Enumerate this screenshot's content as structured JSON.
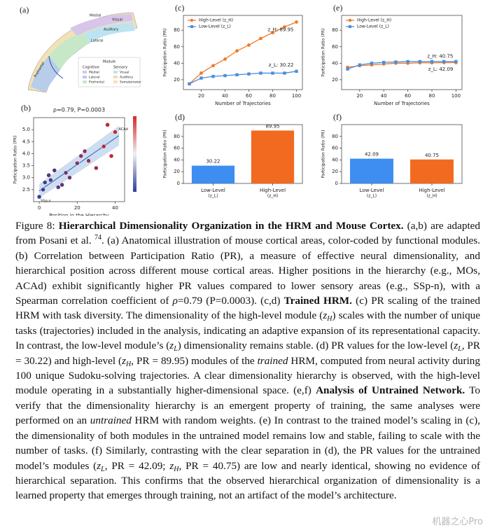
{
  "panel_a": {
    "label": "(a)",
    "regions": [
      "Medial",
      "Visual",
      "Auditory",
      "Lateral",
      "Prefrontal"
    ],
    "legend": {
      "title": "Module",
      "columns": [
        {
          "heading": "Cognitive",
          "items": [
            "Medial",
            "Lateral",
            "Prefrontal"
          ]
        },
        {
          "heading": "Sensory",
          "items": [
            "Visual",
            "Auditory",
            "Somatomotor"
          ]
        }
      ]
    }
  },
  "chart_data": [
    {
      "type": "scatter",
      "label": "(b)",
      "title": "ρ=0.79, P=0.0003",
      "xlabel": "Position in the Hierarchy",
      "ylabel": "Participation Ratio (PR)",
      "x": [
        0,
        2,
        3,
        5,
        6,
        8,
        10,
        12,
        14,
        16,
        20,
        22,
        24,
        26,
        30,
        34,
        36,
        38,
        40
      ],
      "values": [
        2.2,
        2.5,
        2.8,
        3.1,
        2.9,
        3.3,
        2.6,
        2.7,
        3.2,
        3.0,
        3.6,
        3.9,
        4.1,
        3.7,
        3.4,
        4.3,
        5.2,
        3.9,
        4.9
      ],
      "labels": [
        "SSp-n",
        null,
        null,
        null,
        null,
        null,
        null,
        null,
        null,
        null,
        null,
        null,
        null,
        null,
        null,
        null,
        null,
        null,
        "ACAd"
      ],
      "colormap": [
        "#2c3e9c",
        "#d62728"
      ],
      "fit": {
        "x": [
          0,
          42
        ],
        "y": [
          2.45,
          4.75
        ],
        "color": "#3a78c2"
      },
      "xlim": [
        -3,
        45
      ],
      "ylim": [
        2.0,
        5.5
      ],
      "xticks": [
        0,
        20,
        40
      ],
      "yticks": [
        2.5,
        {
          "value": 3,
          "label": "3.0"
        },
        3.5,
        {
          "value": 4,
          "label": "4.0"
        },
        4.5,
        {
          "value": 5,
          "label": "5.0"
        }
      ]
    },
    {
      "type": "line",
      "label": "(c)",
      "xlabel": "Number of Trajectories",
      "ylabel": "Participation Ratio (PR)",
      "x": [
        10,
        20,
        30,
        40,
        50,
        60,
        70,
        80,
        90,
        100
      ],
      "legend": "upper left",
      "series": [
        {
          "name": "High-Level (z_H)",
          "color": "#f07a2a",
          "marker": "circle",
          "annotation": "z_H: 89.95",
          "values": [
            15,
            28,
            37,
            45,
            55,
            62,
            70,
            77,
            84,
            89.95
          ]
        },
        {
          "name": "Low-Level (z_L)",
          "color": "#4a8fd8",
          "marker": "square",
          "annotation": "z_L: 30.22",
          "values": [
            15,
            22,
            24,
            25,
            26,
            27,
            28,
            28,
            28,
            30.22
          ]
        }
      ],
      "xlim": [
        5,
        105
      ],
      "ylim": [
        8,
        98
      ],
      "xticks": [
        20,
        40,
        60,
        80,
        100
      ],
      "yticks": [
        20,
        40,
        60,
        80
      ]
    },
    {
      "type": "bar",
      "label": "(d)",
      "ylabel": "Participation Ratio (PR)",
      "categories": [
        [
          "Low-Level",
          "(z_L)"
        ],
        [
          "High-Level",
          "(z_H)"
        ]
      ],
      "values": [
        30.22,
        89.95
      ],
      "colors": [
        "#3d8ef0",
        "#f26a1f"
      ],
      "ylim": [
        0,
        100
      ],
      "yticks": [
        0,
        20,
        40,
        60,
        80
      ]
    },
    {
      "type": "line",
      "label": "(e)",
      "xlabel": "Number of Trajectories",
      "ylabel": "Participation Ratio (PR)",
      "x": [
        10,
        20,
        30,
        40,
        50,
        60,
        70,
        80,
        90,
        100
      ],
      "legend": "upper left",
      "series": [
        {
          "name": "High-Level (z_H)",
          "color": "#f07a2a",
          "marker": "circle",
          "annotation": "z_H: 40.75",
          "values": [
            35,
            37,
            38,
            39,
            40,
            40,
            40.5,
            40.5,
            40.7,
            40.75
          ]
        },
        {
          "name": "Low-Level (z_L)",
          "color": "#4a8fd8",
          "marker": "square",
          "annotation": "z_L: 42.09",
          "values": [
            33,
            38,
            40,
            41,
            41.5,
            42,
            42,
            42,
            42,
            42.09
          ]
        }
      ],
      "xlim": [
        5,
        105
      ],
      "ylim": [
        8,
        98
      ],
      "xticks": [
        20,
        40,
        60,
        80,
        100
      ],
      "yticks": [
        20,
        40,
        60,
        80
      ]
    },
    {
      "type": "bar",
      "label": "(f)",
      "ylabel": "Participation Ratio (PR)",
      "categories": [
        [
          "Low-Level",
          "(z_L)"
        ],
        [
          "High-Level",
          "(z_H)"
        ]
      ],
      "values": [
        42.09,
        40.75
      ],
      "colors": [
        "#3d8ef0",
        "#f26a1f"
      ],
      "ylim": [
        0,
        100
      ],
      "yticks": [
        0,
        20,
        40,
        60,
        80
      ]
    }
  ],
  "caption": [
    {
      "text": "Figure 8: "
    },
    {
      "text": "Hierarchical Dimensionality Organization in the HRM and Mouse Cortex.",
      "style": "b"
    },
    {
      "text": " (a,b) are adapted from Posani et al. "
    },
    {
      "text": "74",
      "style": "sup"
    },
    {
      "text": ". (a) Anatomical illustration of mouse cortical areas, color-coded by functional modules. (b) Correlation between Participation Ratio (PR), a measure of effective neural dimensionality, and hierarchical position across different mouse cortical areas. Higher positions in the hierarchy (e.g., MOs, ACAd) exhibit significantly higher PR values compared to lower sensory areas (e.g., SSp-n), with a Spearman correlation coefficient of "
    },
    {
      "text": "ρ",
      "style": "i"
    },
    {
      "text": "=0.79 (P=0.0003). (c,d) "
    },
    {
      "text": "Trained HRM.",
      "style": "b"
    },
    {
      "text": " (c) PR scaling of the trained HRM with task diversity. The dimensionality of the high-level module ("
    },
    {
      "text": "z",
      "style": "i"
    },
    {
      "text": "H",
      "style": "sub"
    },
    {
      "text": ") scales with the number of unique tasks (trajectories) included in the analysis, indicating an adaptive expansion of its representational capacity. In contrast, the low-level module’s ("
    },
    {
      "text": "z",
      "style": "i"
    },
    {
      "text": "L",
      "style": "sub"
    },
    {
      "text": ") dimensionality remains stable. (d) PR values for the low-level ("
    },
    {
      "text": "z",
      "style": "i"
    },
    {
      "text": "L",
      "style": "sub"
    },
    {
      "text": ", PR = 30.22) and high-level ("
    },
    {
      "text": "z",
      "style": "i"
    },
    {
      "text": "H",
      "style": "sub"
    },
    {
      "text": ", PR = 89.95) modules of the "
    },
    {
      "text": "trained",
      "style": "i"
    },
    {
      "text": " HRM, computed from neural activity during 100 unique Sudoku-solving trajectories. A clear dimensionality hierarchy is observed, with the high-level module operating in a substantially higher-dimensional space. (e,f) "
    },
    {
      "text": "Analysis of Untrained Network.",
      "style": "b"
    },
    {
      "text": " To verify that the dimensionality hierarchy is an emergent property of training, the same analyses were performed on an "
    },
    {
      "text": "untrained",
      "style": "i"
    },
    {
      "text": " HRM with random weights. (e) In contrast to the trained model’s scaling in (c), the dimensionality of both modules in the untrained model remains low and stable, failing to scale with the number of tasks. (f) Similarly, contrasting with the clear separation in (d), the PR values for the untrained model’s modules ("
    },
    {
      "text": "z",
      "style": "i"
    },
    {
      "text": "L",
      "style": "sub"
    },
    {
      "text": ", PR = 42.09; "
    },
    {
      "text": "z",
      "style": "i"
    },
    {
      "text": "H",
      "style": "sub"
    },
    {
      "text": ", PR = 40.75) are low and nearly identical, showing no evidence of hierarchical separation. This confirms that the observed hierarchical organization of dimensionality is a learned property that emerges through training, not an artifact of the model’s architecture."
    }
  ],
  "watermark": "机器之心Pro"
}
